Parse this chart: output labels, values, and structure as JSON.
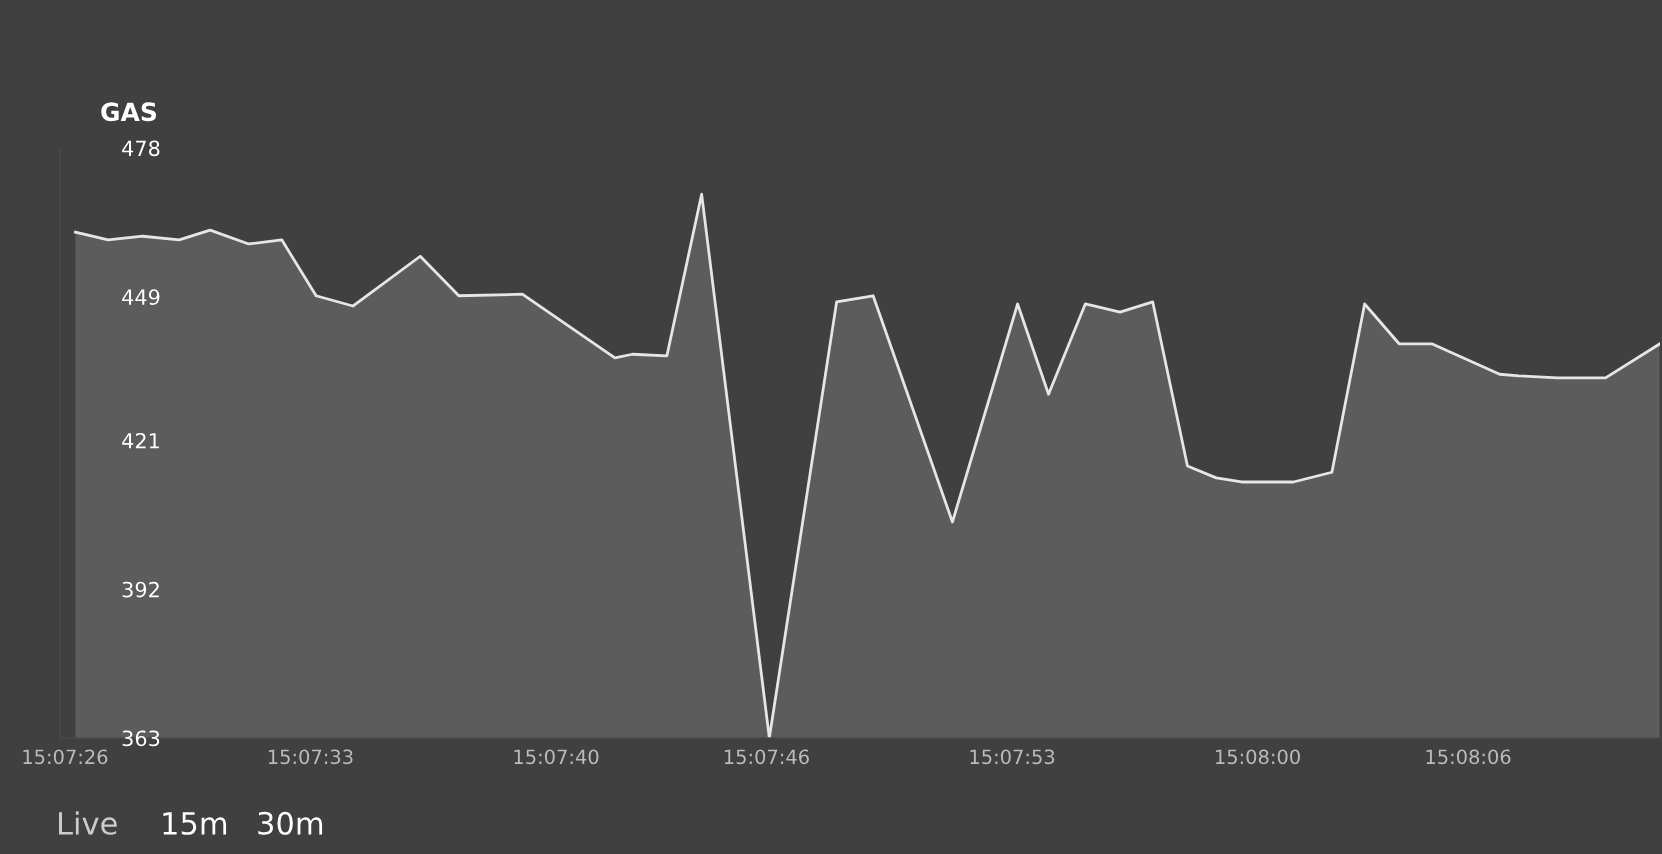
{
  "chart_data": {
    "type": "area",
    "title": "GAS",
    "x": [
      15.123972,
      15.124231,
      15.124506,
      15.124794,
      15.125039,
      15.125344,
      15.125606,
      15.125878,
      15.126169,
      15.126703,
      15.127008,
      15.127511,
      15.128244,
      15.128383,
      15.128656,
      15.128931,
      15.129467,
      15.13,
      15.130289,
      15.130917,
      15.131433,
      15.131678,
      15.131969,
      15.132244,
      15.132503,
      15.132778,
      15.133006,
      15.133206,
      15.133617,
      15.133922,
      15.134181,
      15.134456,
      15.134717,
      15.13525,
      15.135403,
      15.135708,
      15.136089,
      15.136517
    ],
    "series": [
      {
        "color": "#e6e6e6",
        "values": [
          461.6,
          460.1,
          460.8,
          460.1,
          462.0,
          459.3,
          460.1,
          449.2,
          447.2,
          456.9,
          449.2,
          449.5,
          437.1,
          437.8,
          437.5,
          469.0,
          363.0,
          448.0,
          449.2,
          405.1,
          447.6,
          430.0,
          447.6,
          446.0,
          448.0,
          416.0,
          413.7,
          412.9,
          412.9,
          414.8,
          447.6,
          439.8,
          439.8,
          433.9,
          433.6,
          433.2,
          433.2,
          439.8
        ]
      }
    ],
    "xlim": [
      15.12385,
      15.13652
    ],
    "xticks": [
      {
        "value": 15.123889,
        "label": "15:07:26"
      },
      {
        "value": 15.125833,
        "label": "15:07:33"
      },
      {
        "value": 15.127778,
        "label": "15:07:40"
      },
      {
        "value": 15.129444,
        "label": "15:07:46"
      },
      {
        "value": 15.131389,
        "label": "15:07:53"
      },
      {
        "value": 15.133333,
        "label": "15:08:00"
      },
      {
        "value": 15.135,
        "label": "15:08:06"
      }
    ],
    "ylim": [
      363,
      478
    ],
    "yticks": [
      363,
      392,
      421,
      449,
      478
    ],
    "grid": false,
    "legend": false,
    "marker": "none",
    "line_style": "solid",
    "annotations": [
      "Live",
      "15m",
      "30m"
    ]
  }
}
